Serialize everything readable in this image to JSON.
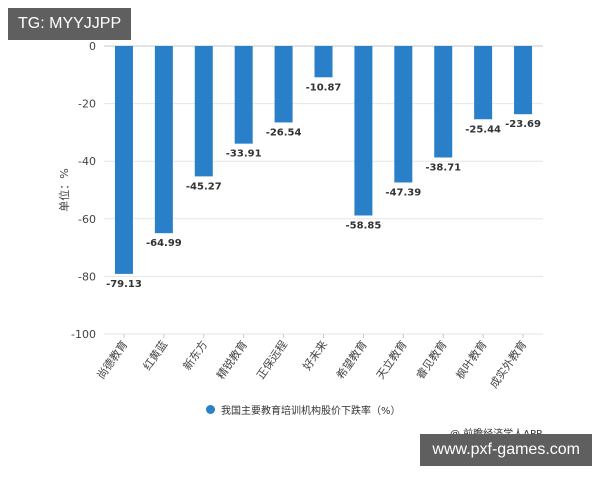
{
  "watermark_top": "TG: MYYJJPP",
  "watermark_bottom": "www.pxf-games.com",
  "source_note": "@ 前瞻经济学人APP",
  "bar_color": "#2a7fc9",
  "chart_data": {
    "type": "bar",
    "title": "",
    "ylabel": "单位：%",
    "ylim": [
      -100,
      0
    ],
    "yticks": [
      0,
      -20,
      -40,
      -60,
      -80,
      -100
    ],
    "grid": true,
    "legend_position": "bottom",
    "categories": [
      "尚德教育",
      "红黄蓝",
      "新东方",
      "精锐教育",
      "正保远程",
      "好未来",
      "希望教育",
      "天立教育",
      "睿见教育",
      "枫叶教育",
      "成实外教育"
    ],
    "series": [
      {
        "name": "我国主要教育培训机构股价下跌率（%）",
        "values": [
          -79.13,
          -64.99,
          -45.27,
          -33.91,
          -26.54,
          -10.87,
          -58.85,
          -47.39,
          -38.71,
          -25.44,
          -23.69
        ],
        "labels": [
          "-79.13",
          "-64.99",
          "-45.27",
          "-33.91",
          "-26.54",
          "-10.87",
          "-58.85",
          "-47.39",
          "-38.71",
          "-25.44",
          "-23.69"
        ]
      }
    ]
  }
}
